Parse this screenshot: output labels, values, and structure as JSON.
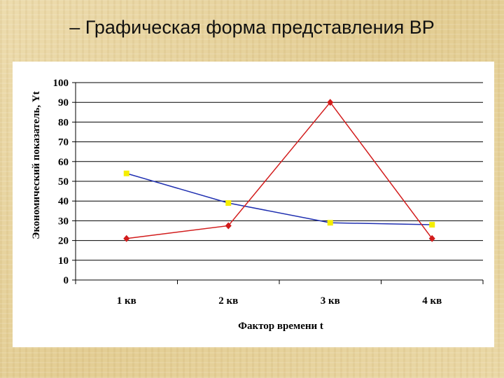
{
  "slide": {
    "title": "– Графическая форма представления ВР"
  },
  "chart_data": {
    "type": "line",
    "categories": [
      "1 кв",
      "2 кв",
      "3 кв",
      "4 кв"
    ],
    "series": [
      {
        "values": [
          54,
          39,
          29,
          28
        ],
        "color": "#1f2fb0",
        "marker_color": "#f5ee00",
        "marker": "square"
      },
      {
        "values": [
          21,
          27.5,
          90,
          21
        ],
        "color": "#d21c1c",
        "marker_color": "#d21c1c",
        "marker": "diamond"
      }
    ],
    "xlabel": "Фактор времени t",
    "ylabel": "Экономический показатель, Yt",
    "ylim": [
      0,
      100
    ],
    "yticks": [
      0,
      10,
      20,
      30,
      40,
      50,
      60,
      70,
      80,
      90,
      100
    ],
    "grid": true
  }
}
